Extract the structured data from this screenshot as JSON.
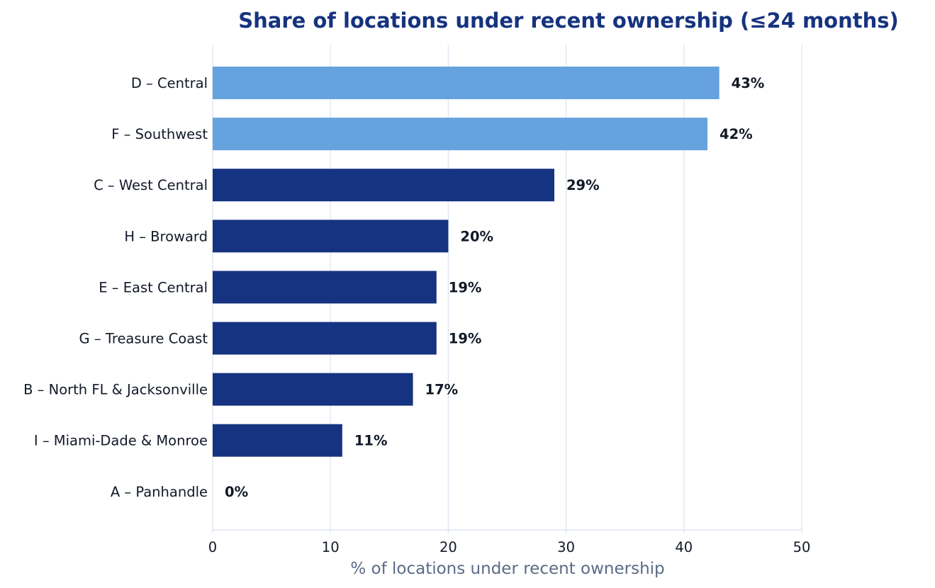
{
  "chart_data": {
    "type": "bar",
    "orientation": "horizontal",
    "title": "Share of locations under recent ownership (≤24 months)",
    "xlabel": "% of locations under recent ownership",
    "ylabel": "",
    "xlim": [
      0,
      50
    ],
    "xticks": [
      0,
      10,
      20,
      30,
      40,
      50
    ],
    "grid": "vertical",
    "value_suffix": "%",
    "categories": [
      "D – Central",
      "F – Southwest",
      "C – West Central",
      "H – Broward",
      "E – East Central",
      "G – Treasure Coast",
      "B – North FL & Jacksonville",
      "I – Miami-Dade & Monroe",
      "A – Panhandle"
    ],
    "values": [
      43,
      42,
      29,
      20,
      19,
      19,
      17,
      11,
      0
    ],
    "highlight": [
      true,
      true,
      false,
      false,
      false,
      false,
      false,
      false,
      false
    ]
  },
  "colors": {
    "title": "#16337f",
    "bar_primary": "#163381",
    "bar_highlight": "#66a2de",
    "grid": "#dde6f0",
    "axis_label": "#5b6b86",
    "text": "#111827"
  }
}
